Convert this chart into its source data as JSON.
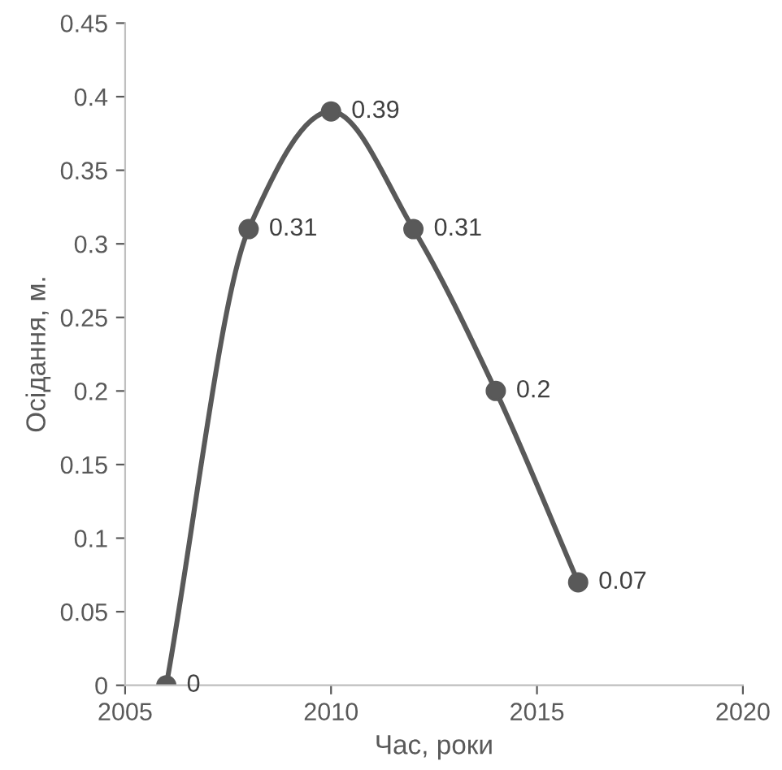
{
  "chart_data": {
    "type": "line",
    "xlabel": "Час, роки",
    "ylabel": "Осідання, м.",
    "x": [
      2006,
      2008,
      2010,
      2012,
      2014,
      2016
    ],
    "series": [
      {
        "color": "#595959",
        "values": [
          0,
          0.31,
          0.39,
          0.31,
          0.2,
          0.07
        ]
      }
    ],
    "xlim": [
      2005,
      2020
    ],
    "ylim": [
      0,
      0.45
    ],
    "xticks": [
      2005,
      2010,
      2015,
      2020
    ],
    "yticks": [
      0,
      0.05,
      0.1,
      0.15,
      0.2,
      0.25,
      0.3,
      0.35,
      0.4,
      0.45
    ],
    "data_labels": true,
    "marker": "circle",
    "line_style": "solid",
    "grid": false,
    "legend": false
  }
}
